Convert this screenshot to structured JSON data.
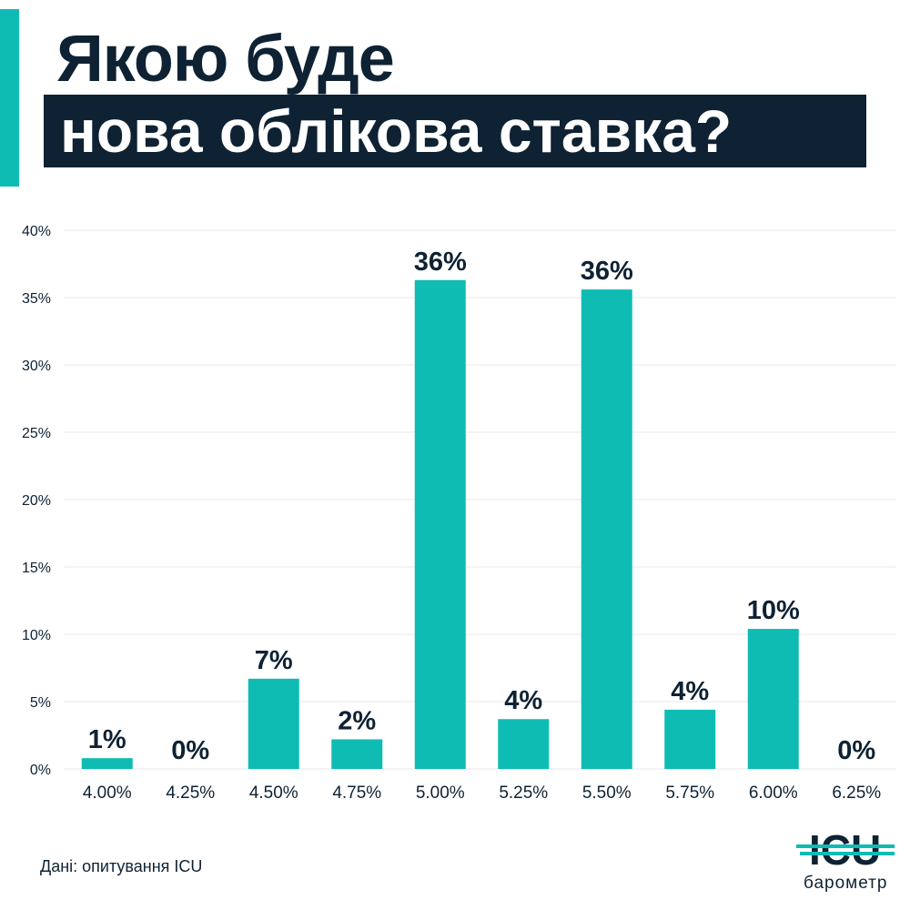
{
  "title": {
    "line1": "Якою буде",
    "line2": "нова облікова ставка?"
  },
  "colors": {
    "accent": "#0ebcb4",
    "navy": "#0e2233",
    "bar": "#0ebcb4",
    "grid": "#e6e9ec"
  },
  "chart_data": {
    "type": "bar",
    "categories": [
      "4.00%",
      "4.25%",
      "4.50%",
      "4.75%",
      "5.00%",
      "5.25%",
      "5.50%",
      "5.75%",
      "6.00%",
      "6.25%"
    ],
    "values": [
      0.8,
      0,
      6.7,
      2.2,
      36.3,
      3.7,
      35.6,
      4.4,
      10.4,
      0
    ],
    "labels": [
      "1%",
      "0%",
      "7%",
      "2%",
      "36%",
      "4%",
      "36%",
      "4%",
      "10%",
      "0%"
    ],
    "yticks": [
      "0%",
      "5%",
      "10%",
      "15%",
      "20%",
      "25%",
      "30%",
      "35%",
      "40%"
    ],
    "ylim": [
      0,
      40
    ],
    "grid": true
  },
  "source": "Дані: опитування ICU",
  "logo": {
    "text": "ICU",
    "subtitle": "барометр"
  }
}
